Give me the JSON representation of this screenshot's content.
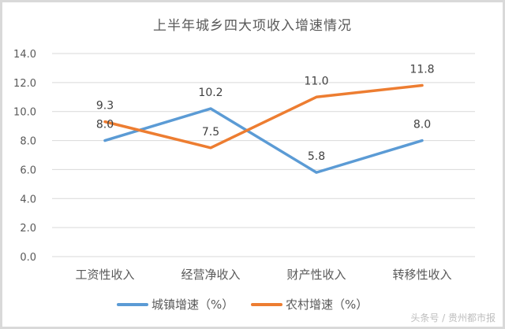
{
  "chart_data": {
    "type": "line",
    "title": "上半年城乡四大项收入增速情况",
    "categories": [
      "工资性收入",
      "经营净收入",
      "财产性收入",
      "转移性收入"
    ],
    "series": [
      {
        "name": "城镇增速（%）",
        "color": "#5b9bd5",
        "values": [
          8.0,
          10.2,
          5.8,
          8.0
        ]
      },
      {
        "name": "农村增速（%）",
        "color": "#ed7d31",
        "values": [
          9.3,
          7.5,
          11.0,
          11.8
        ]
      }
    ],
    "xlabel": "",
    "ylabel": "",
    "ylim": [
      0,
      14
    ],
    "yticks": [
      "0.0",
      "2.0",
      "4.0",
      "6.0",
      "8.0",
      "10.0",
      "12.0",
      "14.0"
    ],
    "grid": true,
    "legend_position": "bottom",
    "data_labels": {
      "series_0": [
        "8.0",
        "10.2",
        "5.8",
        "8.0"
      ],
      "series_1": [
        "9.3",
        "7.5",
        "11.0",
        "11.8"
      ]
    }
  },
  "legend": {
    "items": [
      {
        "label": "城镇增速（%）",
        "color": "#5b9bd5"
      },
      {
        "label": "农村增速（%）",
        "color": "#ed7d31"
      }
    ]
  },
  "watermark": "头条号 / 贵州都市报"
}
